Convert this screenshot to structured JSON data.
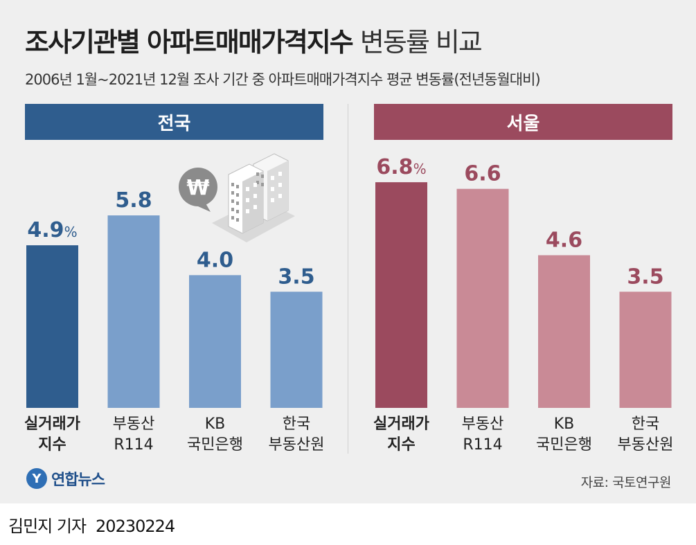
{
  "title": {
    "main": "조사기관별 아파트매매가격지수",
    "rest": "변동률 비교"
  },
  "subtitle": "2006년 1월~2021년 12월 조사 기간 중 아파트매매가격지수 평균 변동률(전년동월대비)",
  "colors": {
    "national_band": "#2f5d8e",
    "national_primary": "#2f5d8e",
    "national_secondary": "#7a9fcb",
    "national_label": "#2f5d8e",
    "seoul_band": "#9b4a5e",
    "seoul_primary": "#9b4a5e",
    "seoul_secondary": "#c98a96",
    "seoul_label": "#9b4a5e"
  },
  "chart_data": [
    {
      "type": "bar",
      "panel_title": "전국",
      "categories": [
        [
          "실거래가",
          "지수"
        ],
        [
          "부동산",
          "R114"
        ],
        [
          "KB",
          "국민은행"
        ],
        [
          "한국",
          "부동산원"
        ]
      ],
      "values": [
        4.9,
        5.8,
        4.0,
        3.5
      ],
      "value_labels": [
        "4.9",
        "5.8",
        "4.0",
        "3.5"
      ],
      "unit": "%",
      "ylim": [
        0,
        7.7
      ],
      "grid": false
    },
    {
      "type": "bar",
      "panel_title": "서울",
      "categories": [
        [
          "실거래가",
          "지수"
        ],
        [
          "부동산",
          "R114"
        ],
        [
          "KB",
          "국민은행"
        ],
        [
          "한국",
          "부동산원"
        ]
      ],
      "values": [
        6.8,
        6.6,
        4.6,
        3.5
      ],
      "value_labels": [
        "6.8",
        "6.6",
        "4.6",
        "3.5"
      ],
      "unit": "%",
      "ylim": [
        0,
        7.7
      ],
      "grid": false
    }
  ],
  "icons": {
    "won": "won-sign-speech-bubble-icon",
    "building": "apartment-buildings-icon"
  },
  "won_symbol": "₩",
  "logo": {
    "mark": "Y",
    "text": "연합뉴스"
  },
  "source": "자료: 국토연구원",
  "footer": {
    "author": "김민지 기자",
    "date": "20230224"
  }
}
